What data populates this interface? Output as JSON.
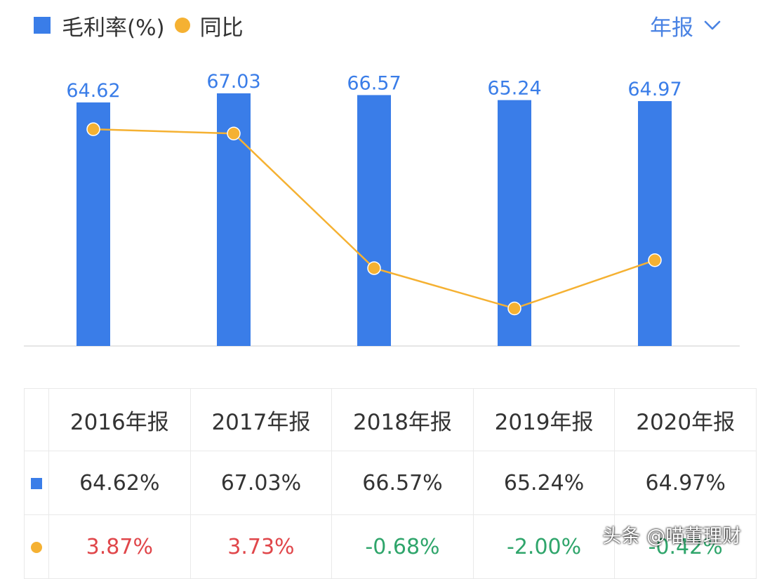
{
  "legend": {
    "bar_label": "毛利率(%)",
    "line_label": "同比"
  },
  "period_selector": {
    "label": "年报"
  },
  "colors": {
    "bar": "#3a7de8",
    "line": "#f5b132",
    "positive": "#e0464a",
    "negative": "#2fa56b",
    "period": "#4a83e3"
  },
  "chart_data": {
    "type": "bar",
    "categories": [
      "2016年报",
      "2017年报",
      "2018年报",
      "2019年报",
      "2020年报"
    ],
    "series": [
      {
        "name": "毛利率(%)",
        "type": "bar",
        "values": [
          64.62,
          67.03,
          66.57,
          65.24,
          64.97
        ],
        "labels": [
          "64.62",
          "67.03",
          "66.57",
          "65.24",
          "64.97"
        ]
      },
      {
        "name": "同比",
        "type": "line",
        "values": [
          3.87,
          3.73,
          -0.68,
          -2.0,
          -0.42
        ]
      }
    ],
    "grid": false,
    "legend_position": "top-left"
  },
  "table": {
    "headers": [
      "2016年报",
      "2017年报",
      "2018年报",
      "2019年报",
      "2020年报"
    ],
    "gross_margin": [
      "64.62%",
      "67.03%",
      "66.57%",
      "65.24%",
      "64.97%"
    ],
    "yoy": [
      "3.87%",
      "3.73%",
      "-0.68%",
      "-2.00%",
      "-0.42%"
    ]
  },
  "watermark": "头条 @喵董理财"
}
